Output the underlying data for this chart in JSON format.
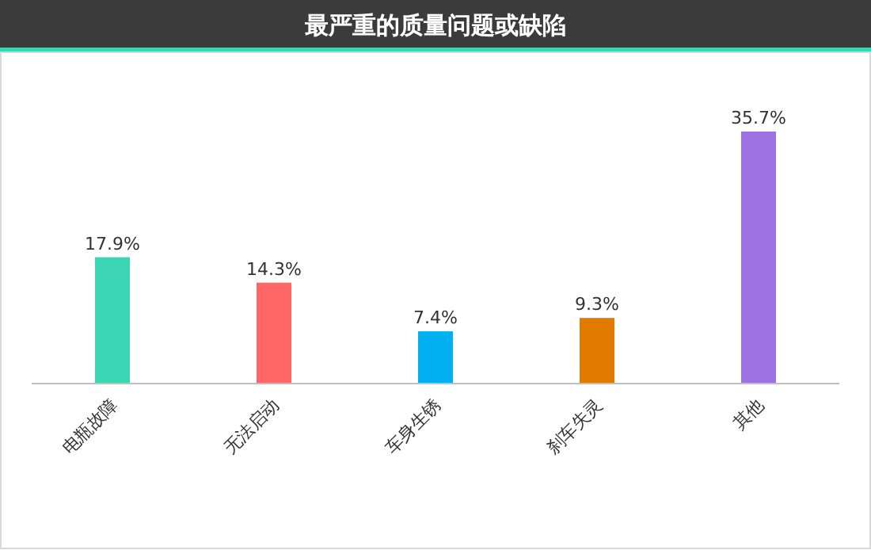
{
  "chart_data": {
    "type": "bar",
    "title": "最严重的质量问题或缺陷",
    "categories": [
      "电瓶故障",
      "无法启动",
      "车身生锈",
      "刹车失灵",
      "其他"
    ],
    "values": [
      17.9,
      14.3,
      7.4,
      9.3,
      35.7
    ],
    "colors": [
      "#3dd6b5",
      "#ff6666",
      "#00b0f0",
      "#e07b00",
      "#9e72e3"
    ],
    "value_labels": [
      "17.9%",
      "14.3%",
      "7.4%",
      "9.3%",
      "35.7%"
    ]
  }
}
